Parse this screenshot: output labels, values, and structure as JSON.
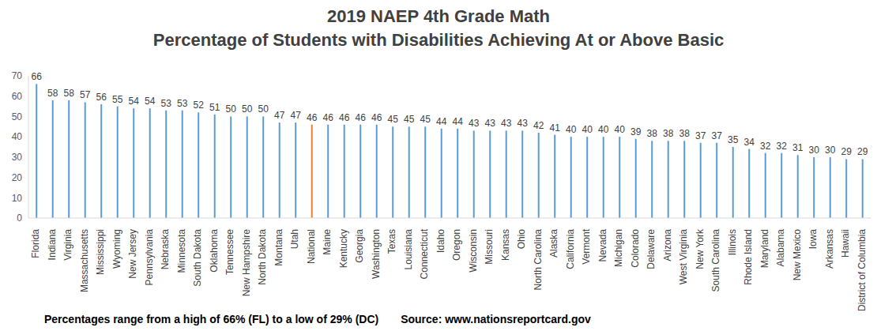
{
  "chart_data": {
    "type": "bar",
    "title": "2019 NAEP 4th Grade Math",
    "subtitle": "Percentage of Students with Disabilities Achieving At or Above Basic",
    "categories": [
      "Florida",
      "Indiana",
      "Virginia",
      "Massachusetts",
      "Mississippi",
      "Wyoming",
      "New Jersey",
      "Pennsylvania",
      "Nebraska",
      "Minnesota",
      "South Dakota",
      "Oklahoma",
      "Tennessee",
      "New Hampshire",
      "North Dakota",
      "Montana",
      "Utah",
      "National",
      "Maine",
      "Kentucky",
      "Georgia",
      "Washington",
      "Texas",
      "Louisiana",
      "Connecticut",
      "Idaho",
      "Oregon",
      "Wisconsin",
      "Missouri",
      "Kansas",
      "Ohio",
      "North Carolina",
      "Alaska",
      "California",
      "Vermont",
      "Nevada",
      "Michigan",
      "Colorado",
      "Delaware",
      "Arizona",
      "West Virginia",
      "New York",
      "South Carolina",
      "Illinois",
      "Rhode Island",
      "Maryland",
      "Alabama",
      "New Mexico",
      "Iowa",
      "Arkansas",
      "Hawaii",
      "District of Columbia"
    ],
    "values": [
      66,
      58,
      58,
      57,
      56,
      55,
      54,
      54,
      53,
      53,
      52,
      51,
      50,
      50,
      50,
      47,
      47,
      46,
      46,
      46,
      46,
      46,
      45,
      45,
      45,
      44,
      44,
      43,
      43,
      43,
      43,
      42,
      41,
      40,
      40,
      40,
      40,
      39,
      38,
      38,
      38,
      37,
      37,
      35,
      34,
      32,
      32,
      31,
      30,
      30,
      29,
      29
    ],
    "colors": [
      "#5b9bd5",
      "#5b9bd5",
      "#5b9bd5",
      "#5b9bd5",
      "#5b9bd5",
      "#5b9bd5",
      "#5b9bd5",
      "#5b9bd5",
      "#5b9bd5",
      "#5b9bd5",
      "#5b9bd5",
      "#5b9bd5",
      "#5b9bd5",
      "#5b9bd5",
      "#5b9bd5",
      "#5b9bd5",
      "#5b9bd5",
      "#ed7d31",
      "#5b9bd5",
      "#5b9bd5",
      "#5b9bd5",
      "#5b9bd5",
      "#5b9bd5",
      "#5b9bd5",
      "#5b9bd5",
      "#5b9bd5",
      "#5b9bd5",
      "#5b9bd5",
      "#5b9bd5",
      "#5b9bd5",
      "#5b9bd5",
      "#5b9bd5",
      "#5b9bd5",
      "#5b9bd5",
      "#5b9bd5",
      "#5b9bd5",
      "#5b9bd5",
      "#5b9bd5",
      "#5b9bd5",
      "#5b9bd5",
      "#5b9bd5",
      "#5b9bd5",
      "#5b9bd5",
      "#5b9bd5",
      "#5b9bd5",
      "#5b9bd5",
      "#5b9bd5",
      "#5b9bd5",
      "#5b9bd5",
      "#5b9bd5",
      "#5b9bd5",
      "#5b9bd5"
    ],
    "ylim": [
      0,
      70
    ],
    "yticks": [
      0,
      10,
      20,
      30,
      40,
      50,
      60,
      70
    ],
    "grid": false,
    "data_labels": true,
    "annotations": [
      "Percentages range from a high of 66% (FL) to a low of 29% (DC)",
      "Source: www.nationsreportcard.gov"
    ]
  }
}
